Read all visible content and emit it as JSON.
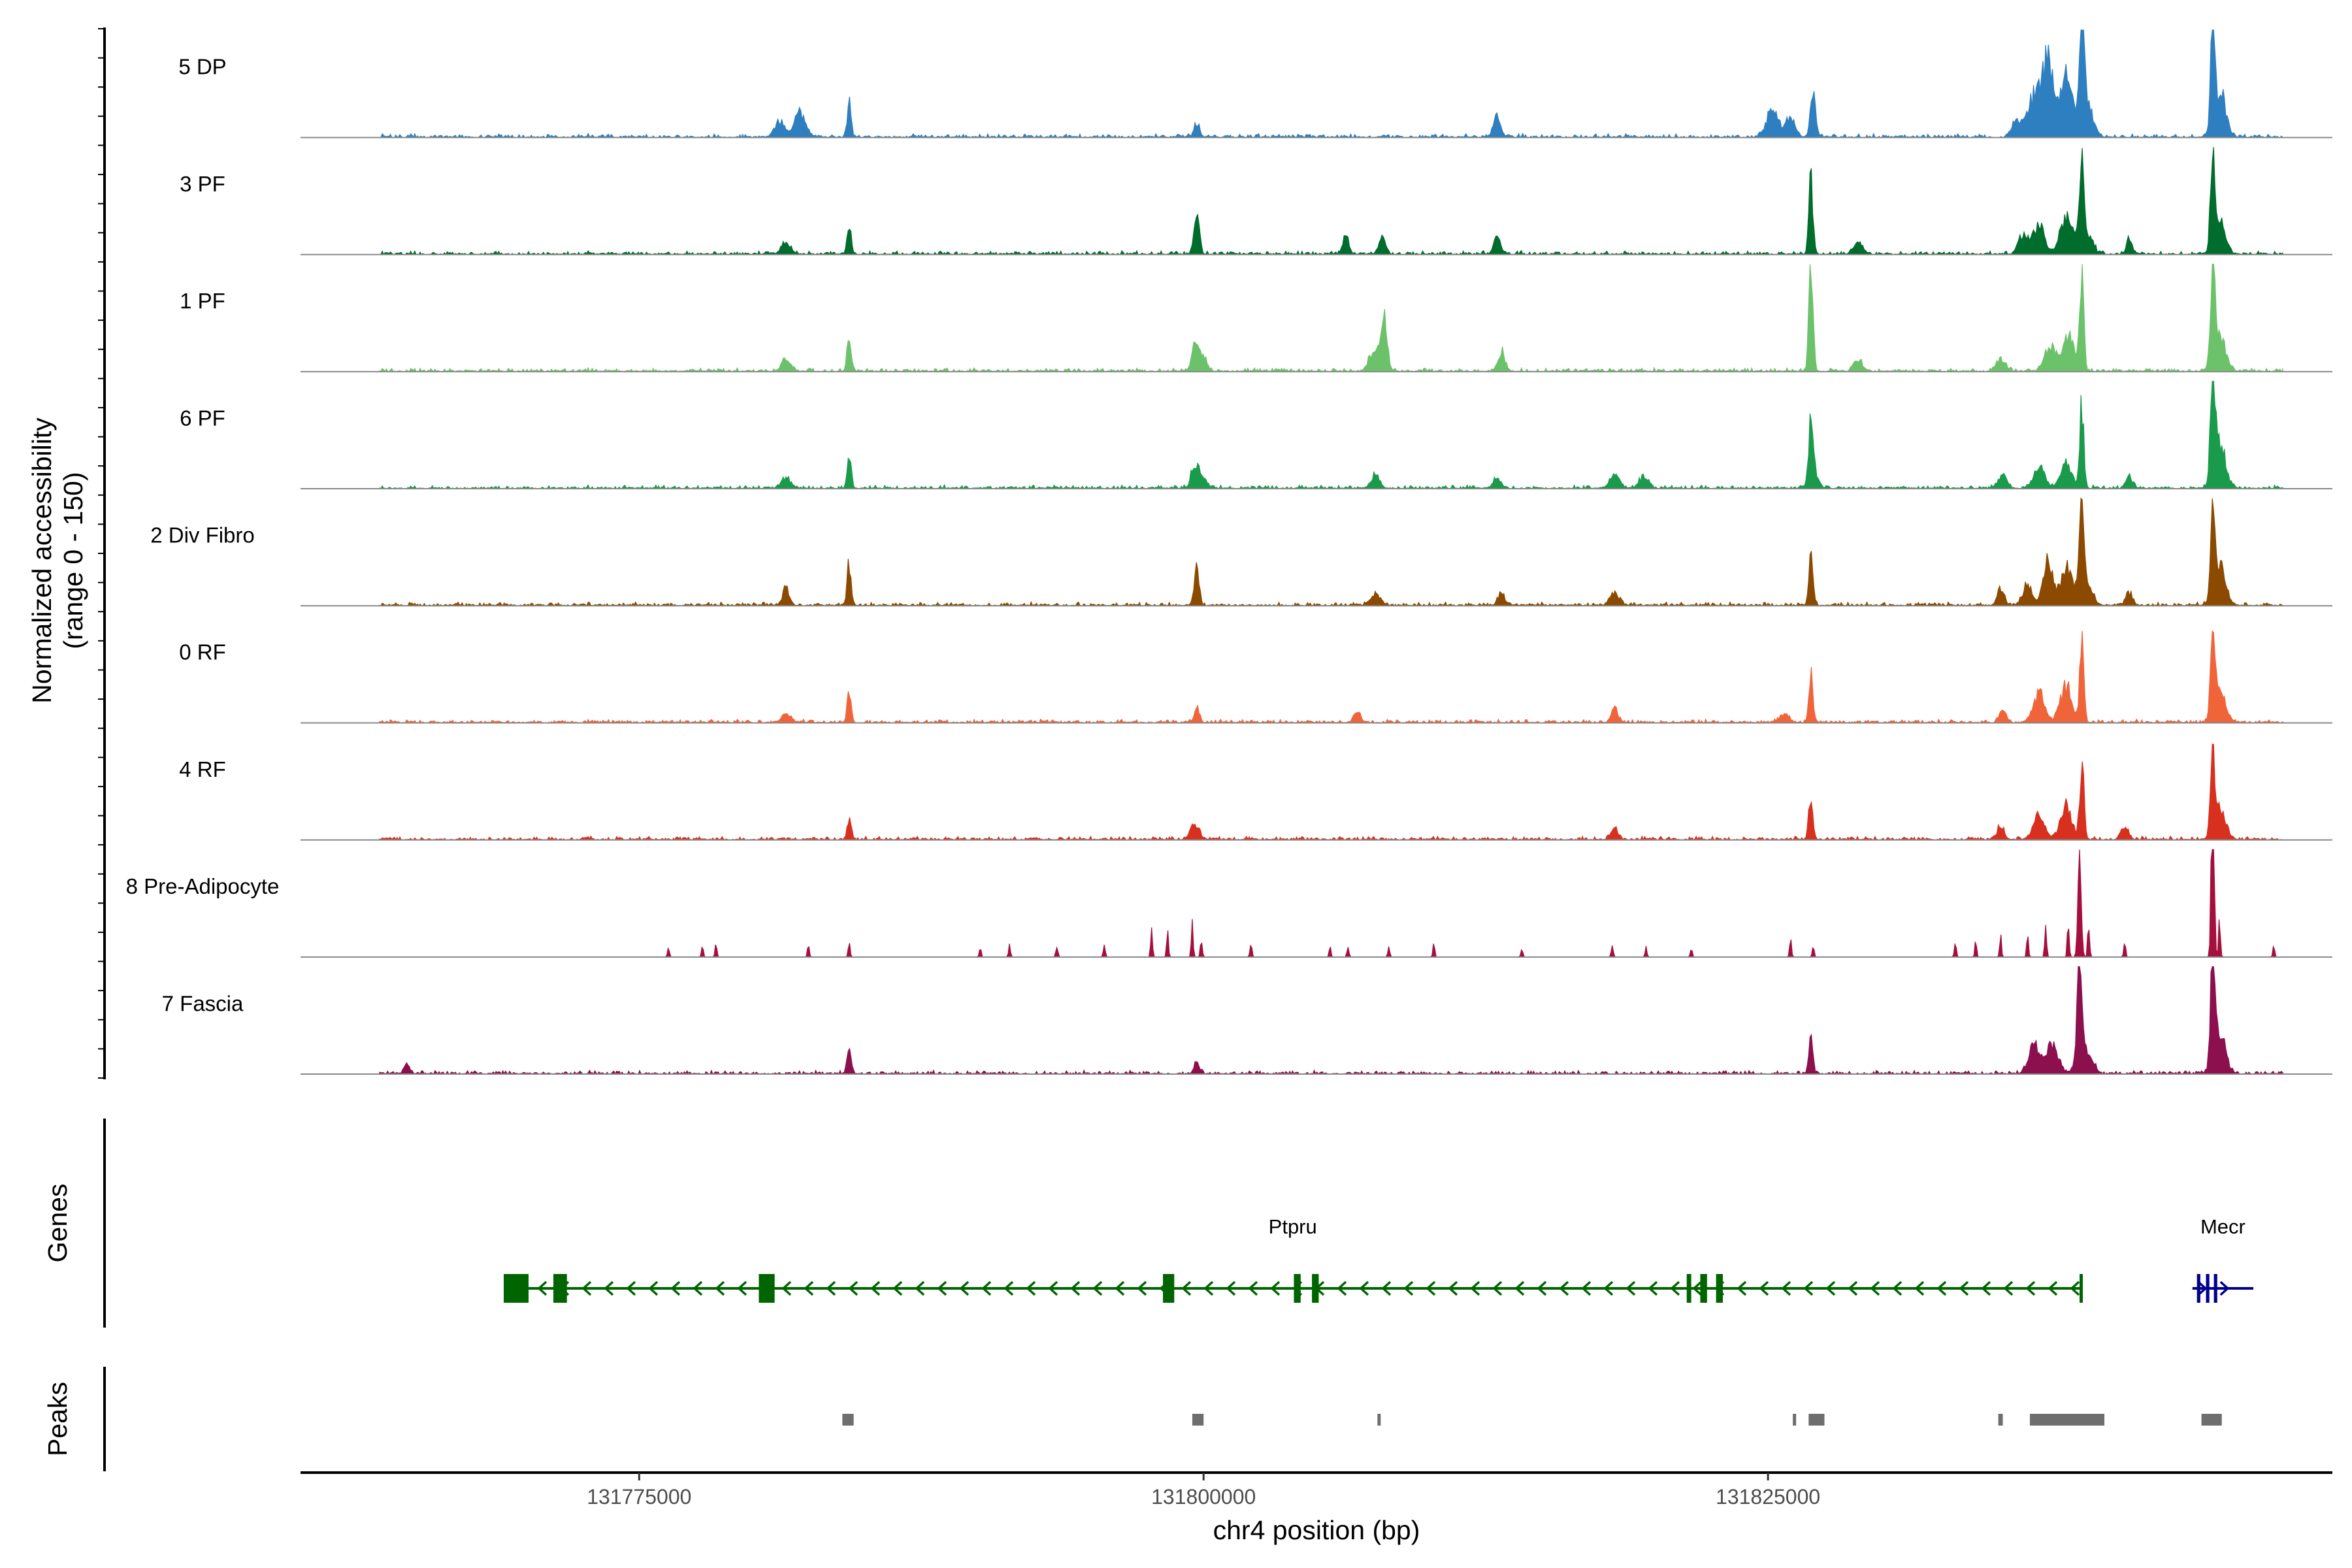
{
  "chart_data": {
    "type": "coverage_track",
    "region": {
      "chrom": "chr4",
      "start": 131760000,
      "end": 131850000
    },
    "xlabel": "chr4 position (bp)",
    "xticks": [
      131775000,
      131800000,
      131825000
    ],
    "ylabel_line1": "Normalized accessibility",
    "ylabel_line2": "(range 0 - 150)",
    "ylim": [
      0,
      150
    ],
    "tracks": [
      {
        "name": "5 DP",
        "color": "#2e7fbf",
        "noise": 2,
        "peaks": [
          [
            131781200,
            8,
            200
          ],
          [
            131782100,
            12,
            250
          ],
          [
            131784300,
            16,
            90
          ],
          [
            131799700,
            6,
            120
          ],
          [
            131813000,
            10,
            160
          ],
          [
            131825200,
            15,
            250
          ],
          [
            131826000,
            10,
            200
          ],
          [
            131827000,
            25,
            110
          ],
          [
            131836000,
            8,
            200
          ],
          [
            131836800,
            20,
            300
          ],
          [
            131837400,
            35,
            250
          ],
          [
            131838200,
            28,
            250
          ],
          [
            131838900,
            52,
            80
          ],
          [
            131839000,
            22,
            300
          ],
          [
            131844700,
            60,
            80
          ],
          [
            131845000,
            22,
            260
          ]
        ]
      },
      {
        "name": "3 PF",
        "color": "#006d2c",
        "noise": 2,
        "peaks": [
          [
            131781500,
            5,
            200
          ],
          [
            131784300,
            14,
            90
          ],
          [
            131799700,
            18,
            120
          ],
          [
            131806300,
            10,
            120
          ],
          [
            131807900,
            8,
            150
          ],
          [
            131813000,
            8,
            150
          ],
          [
            131826900,
            36,
            90
          ],
          [
            131829000,
            5,
            200
          ],
          [
            131836300,
            10,
            200
          ],
          [
            131837000,
            14,
            250
          ],
          [
            131838200,
            18,
            250
          ],
          [
            131838900,
            42,
            90
          ],
          [
            131839000,
            12,
            300
          ],
          [
            131841000,
            8,
            120
          ],
          [
            131844700,
            48,
            90
          ],
          [
            131845000,
            15,
            260
          ]
        ]
      },
      {
        "name": "1 PF",
        "color": "#6cc26a",
        "noise": 2,
        "peaks": [
          [
            131781500,
            6,
            200
          ],
          [
            131784300,
            17,
            90
          ],
          [
            131799600,
            10,
            150
          ],
          [
            131799900,
            8,
            200
          ],
          [
            131808000,
            26,
            130
          ],
          [
            131807600,
            10,
            250
          ],
          [
            131813200,
            10,
            150
          ],
          [
            131826900,
            52,
            90
          ],
          [
            131829000,
            5,
            200
          ],
          [
            131835300,
            6,
            200
          ],
          [
            131837500,
            12,
            250
          ],
          [
            131838300,
            18,
            250
          ],
          [
            131838900,
            48,
            90
          ],
          [
            131844700,
            50,
            90
          ],
          [
            131845000,
            16,
            260
          ]
        ]
      },
      {
        "name": "6 PF",
        "color": "#1a9a4b",
        "noise": 2,
        "peaks": [
          [
            131781500,
            5,
            200
          ],
          [
            131784300,
            16,
            90
          ],
          [
            131799600,
            10,
            150
          ],
          [
            131799900,
            6,
            200
          ],
          [
            131807600,
            6,
            200
          ],
          [
            131813000,
            6,
            150
          ],
          [
            131818200,
            8,
            200
          ],
          [
            131819500,
            6,
            200
          ],
          [
            131826900,
            26,
            90
          ],
          [
            131827000,
            10,
            200
          ],
          [
            131835400,
            6,
            200
          ],
          [
            131837000,
            10,
            250
          ],
          [
            131838200,
            12,
            250
          ],
          [
            131838900,
            40,
            90
          ],
          [
            131841000,
            6,
            150
          ],
          [
            131844700,
            62,
            90
          ],
          [
            131845000,
            22,
            260
          ]
        ]
      },
      {
        "name": "2 Div Fibro",
        "color": "#8b4a00",
        "noise": 2,
        "peaks": [
          [
            131781500,
            10,
            120
          ],
          [
            131784300,
            20,
            90
          ],
          [
            131799700,
            18,
            100
          ],
          [
            131807600,
            6,
            200
          ],
          [
            131813200,
            6,
            150
          ],
          [
            131818200,
            6,
            200
          ],
          [
            131826900,
            24,
            90
          ],
          [
            131835300,
            8,
            150
          ],
          [
            131836500,
            10,
            200
          ],
          [
            131837400,
            24,
            200
          ],
          [
            131838200,
            18,
            250
          ],
          [
            131838900,
            55,
            90
          ],
          [
            131839000,
            12,
            300
          ],
          [
            131841000,
            6,
            150
          ],
          [
            131844700,
            52,
            90
          ],
          [
            131845000,
            18,
            260
          ]
        ]
      },
      {
        "name": "0 RF",
        "color": "#f0643a",
        "noise": 2,
        "peaks": [
          [
            131781500,
            4,
            200
          ],
          [
            131784300,
            14,
            90
          ],
          [
            131799700,
            7,
            120
          ],
          [
            131806800,
            5,
            150
          ],
          [
            131818200,
            7,
            150
          ],
          [
            131825700,
            4,
            200
          ],
          [
            131826900,
            24,
            90
          ],
          [
            131835400,
            6,
            150
          ],
          [
            131837000,
            14,
            250
          ],
          [
            131838200,
            18,
            250
          ],
          [
            131838900,
            40,
            90
          ],
          [
            131844700,
            44,
            90
          ],
          [
            131845000,
            16,
            260
          ]
        ]
      },
      {
        "name": "4 RF",
        "color": "#d7301f",
        "noise": 2,
        "peaks": [
          [
            131784300,
            11,
            90
          ],
          [
            131799600,
            8,
            200
          ],
          [
            131818200,
            6,
            150
          ],
          [
            131826900,
            22,
            90
          ],
          [
            131835300,
            7,
            150
          ],
          [
            131837000,
            12,
            250
          ],
          [
            131838200,
            16,
            250
          ],
          [
            131838900,
            40,
            90
          ],
          [
            131840800,
            6,
            150
          ],
          [
            131844700,
            40,
            90
          ],
          [
            131845000,
            14,
            260
          ]
        ]
      },
      {
        "name": "8 Pre-Adipocyte",
        "color": "#a50f3d",
        "noise": 0,
        "peaks": [
          [
            131776300,
            6,
            40
          ],
          [
            131777800,
            5,
            40
          ],
          [
            131778400,
            6,
            40
          ],
          [
            131782500,
            6,
            40
          ],
          [
            131784300,
            9,
            40
          ],
          [
            131790100,
            5,
            40
          ],
          [
            131791400,
            6,
            40
          ],
          [
            131793500,
            6,
            40
          ],
          [
            131795600,
            6,
            40
          ],
          [
            131797700,
            14,
            40
          ],
          [
            131798400,
            12,
            40
          ],
          [
            131799500,
            16,
            40
          ],
          [
            131799900,
            10,
            40
          ],
          [
            131802100,
            8,
            40
          ],
          [
            131805600,
            5,
            40
          ],
          [
            131806400,
            6,
            40
          ],
          [
            131808200,
            5,
            40
          ],
          [
            131810200,
            6,
            40
          ],
          [
            131814100,
            5,
            40
          ],
          [
            131818100,
            6,
            40
          ],
          [
            131819600,
            5,
            40
          ],
          [
            131821600,
            5,
            40
          ],
          [
            131826000,
            10,
            40
          ],
          [
            131827000,
            6,
            40
          ],
          [
            131833300,
            8,
            40
          ],
          [
            131834200,
            7,
            40
          ],
          [
            131835300,
            12,
            40
          ],
          [
            131836500,
            10,
            40
          ],
          [
            131837300,
            16,
            40
          ],
          [
            131838300,
            18,
            40
          ],
          [
            131838800,
            62,
            70
          ],
          [
            131839200,
            20,
            40
          ],
          [
            131840800,
            8,
            40
          ],
          [
            131844700,
            96,
            60
          ],
          [
            131845000,
            20,
            40
          ],
          [
            131847400,
            6,
            40
          ]
        ]
      },
      {
        "name": "7 Fascia",
        "color": "#8c0f4e",
        "noise": 2,
        "peaks": [
          [
            131764700,
            5,
            120
          ],
          [
            131784300,
            12,
            90
          ],
          [
            131799700,
            6,
            120
          ],
          [
            131826900,
            16,
            90
          ],
          [
            131836800,
            14,
            250
          ],
          [
            131837600,
            14,
            250
          ],
          [
            131838800,
            55,
            90
          ],
          [
            131839000,
            14,
            300
          ],
          [
            131844700,
            60,
            90
          ],
          [
            131845000,
            20,
            260
          ]
        ]
      }
    ],
    "genes": [
      {
        "name": "Ptpru",
        "strand": "-",
        "color": "#006400",
        "start": 131769000,
        "end": 131838900,
        "exons": [
          [
            131769000,
            131770100
          ],
          [
            131771200,
            131771800
          ],
          [
            131780300,
            131781000
          ],
          [
            131798200,
            131798700
          ],
          [
            131804000,
            131804300
          ],
          [
            131804800,
            131805100
          ],
          [
            131821400,
            131821600
          ],
          [
            131822000,
            131822300
          ],
          [
            131822700,
            131823000
          ],
          [
            131838800,
            131838900
          ]
        ]
      },
      {
        "name": "Mecr",
        "strand": "+",
        "color": "#00008b",
        "start": 131843800,
        "end": 131846500,
        "exons": [
          [
            131844000,
            131844150
          ],
          [
            131844400,
            131844550
          ],
          [
            131844750,
            131844900
          ]
        ]
      }
    ],
    "peaks_label": "Peaks",
    "genes_label": "Genes",
    "peak_regions": [
      [
        131784000,
        131784500
      ],
      [
        131799500,
        131800000
      ],
      [
        131807700,
        131807800
      ],
      [
        131826100,
        131826200
      ],
      [
        131826800,
        131827500
      ],
      [
        131835200,
        131835400
      ],
      [
        131836600,
        131839900
      ],
      [
        131844200,
        131845100
      ]
    ]
  }
}
